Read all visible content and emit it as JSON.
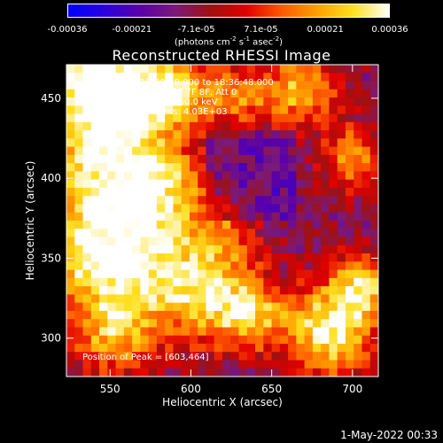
{
  "colorbar": {
    "ticks": [
      "-0.00036",
      "-0.00021",
      "-7.1e-05",
      "7.1e-05",
      "0.00021",
      "0.00036"
    ],
    "units_main": "(photons cm",
    "units_exp1": "-2",
    "units_mid1": " s",
    "units_exp2": "-1",
    "units_mid2": " asec",
    "units_exp3": "-2",
    "units_end": ")",
    "range": [
      -0.00036,
      0.00036
    ],
    "colors": [
      "#0000ff",
      "#2a00e0",
      "#5a00a8",
      "#7a1a7a",
      "#a01010",
      "#e00000",
      "#ff5a00",
      "#ffa000",
      "#ffe020",
      "#ffffff"
    ]
  },
  "title": "Reconstructed RHESSI Image",
  "info_lines": {
    "time": "24-Apr-2003 18:30:48.000 to 18:36:48.000",
    "detectors": "Detectors: 3F 4F 5F 6F 7F 8F, Att 0",
    "energy": "Energy Range: 25.0 - 50.0 keV",
    "clean": "Clean      Total counts: 4.03E+03"
  },
  "peak_label": "Position of Peak = [603,464]",
  "footer": "1-May-2022 00:33",
  "chart_data": {
    "type": "heatmap",
    "title": "Reconstructed RHESSI Image",
    "xlabel": "Heliocentric X (arcsec)",
    "ylabel": "Heliocentric Y (arcsec)",
    "xlim": [
      523,
      716
    ],
    "ylim": [
      276,
      471
    ],
    "x_ticks": [
      "550",
      "600",
      "650",
      "700"
    ],
    "y_ticks": [
      "300",
      "350",
      "400",
      "450"
    ],
    "value_range": [
      -0.00036,
      0.00036
    ],
    "grid_cells": 38,
    "peak_position": [
      603,
      464
    ]
  }
}
